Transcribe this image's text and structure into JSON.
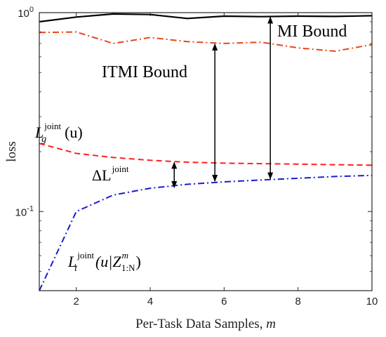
{
  "chart_data": {
    "type": "line",
    "xlabel": "Per-Task Data Samples,",
    "xlabel_var": "m",
    "ylabel": "loss",
    "xlim": [
      1,
      10
    ],
    "ylim": [
      0.04,
      1.0
    ],
    "yscale": "log",
    "grid": false,
    "x_ticks": [
      2,
      4,
      6,
      8,
      10
    ],
    "x_tick_labels": [
      "2",
      "4",
      "6",
      "8",
      "10"
    ],
    "y_ticks": [
      {
        "value": 0.1,
        "base": "10",
        "exp": "-1"
      },
      {
        "value": 1.0,
        "base": "10",
        "exp": "0"
      }
    ],
    "series": [
      {
        "key": "mi",
        "color": "#000000",
        "dash": "solid",
        "x": [
          1,
          2,
          3,
          4,
          5,
          6,
          7,
          8,
          9,
          10
        ],
        "y": [
          0.9,
          0.95,
          0.985,
          0.978,
          0.935,
          0.96,
          0.955,
          0.96,
          0.957,
          0.965
        ]
      },
      {
        "key": "itmi",
        "color": "#e8451c",
        "dash": "dashdot",
        "x": [
          1,
          2,
          3,
          4,
          5,
          6,
          7,
          8,
          9,
          10
        ],
        "y": [
          0.795,
          0.8,
          0.7,
          0.75,
          0.715,
          0.7,
          0.71,
          0.665,
          0.64,
          0.69
        ]
      },
      {
        "key": "lg",
        "color": "#ff1f1f",
        "dash": "dashed",
        "x": [
          1,
          2,
          3,
          4,
          5,
          6,
          7,
          8,
          9,
          10
        ],
        "y": [
          0.22,
          0.196,
          0.187,
          0.181,
          0.177,
          0.175,
          0.174,
          0.173,
          0.172,
          0.171
        ]
      },
      {
        "key": "lt",
        "color": "#1a1ad6",
        "dash": "dashdot",
        "x": [
          1,
          2,
          3,
          4,
          5,
          6,
          7,
          8,
          9,
          10
        ],
        "y": [
          0.04,
          0.1,
          0.121,
          0.131,
          0.137,
          0.141,
          0.144,
          0.147,
          0.15,
          0.152
        ]
      }
    ],
    "annotations": {
      "mi_bound": "MI Bound",
      "itmi_bound": "ITMI Bound",
      "lg_symbol": "L",
      "lg_sub": "g",
      "lg_sup": "joint",
      "lg_arg": "(u)",
      "delta_symbol": "ΔL",
      "delta_sup": "joint",
      "lt_symbol": "L",
      "lt_sub": "t",
      "lt_sup": "joint",
      "lt_arg_open": "(u|Z",
      "lt_z_sup": "m",
      "lt_z_sub": "1:N",
      "lt_arg_close": ")"
    },
    "arrows": [
      {
        "name": "delta-arrow",
        "x": 4.65,
        "y_top": 0.178,
        "y_bottom": 0.131
      },
      {
        "name": "itmi-arrow",
        "x": 5.75,
        "y_top": 0.7,
        "y_bottom": 0.141
      },
      {
        "name": "mi-arrow",
        "x": 7.25,
        "y_top": 0.955,
        "y_bottom": 0.145
      }
    ]
  }
}
